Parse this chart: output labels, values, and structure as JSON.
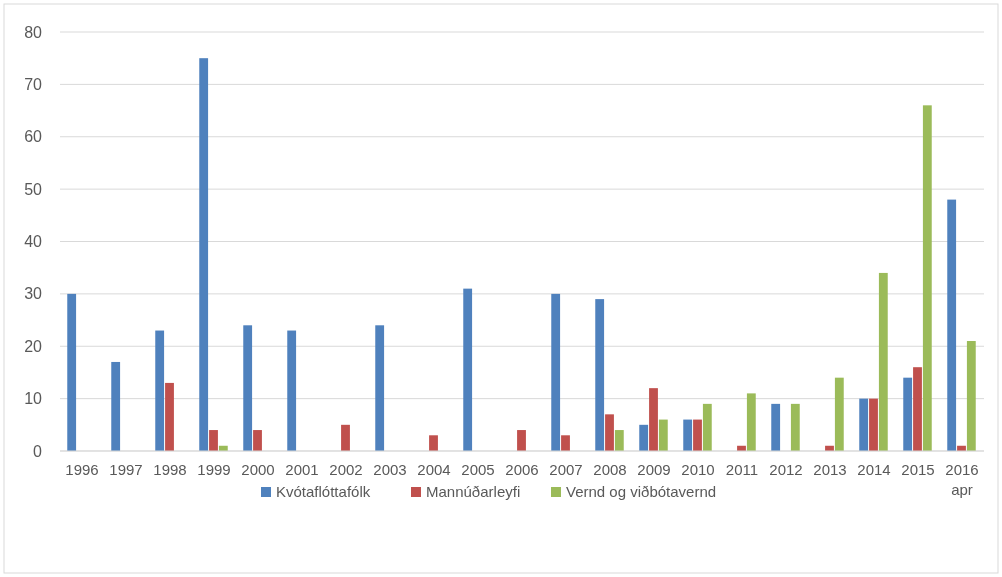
{
  "chart_data": {
    "type": "bar",
    "categories": [
      "1996",
      "1997",
      "1998",
      "1999",
      "2000",
      "2001",
      "2002",
      "2003",
      "2004",
      "2005",
      "2006",
      "2007",
      "2008",
      "2009",
      "2010",
      "2011",
      "2012",
      "2013",
      "2014",
      "2015",
      "2016 apr"
    ],
    "series": [
      {
        "name": "Kvótaflóttafólk",
        "color": "#4f81bd",
        "values": [
          30,
          17,
          23,
          75,
          24,
          23,
          0,
          24,
          0,
          31,
          0,
          30,
          29,
          5,
          6,
          0,
          9,
          0,
          10,
          14,
          48
        ]
      },
      {
        "name": "Mannúðarleyfi",
        "color": "#c0504d",
        "values": [
          0,
          0,
          13,
          4,
          4,
          0,
          5,
          0,
          3,
          0,
          4,
          3,
          7,
          12,
          6,
          1,
          0,
          1,
          10,
          16,
          1
        ]
      },
      {
        "name": "Vernd og viðbótavernd",
        "color": "#9bbb59",
        "values": [
          0,
          0,
          0,
          1,
          0,
          0,
          0,
          0,
          0,
          0,
          0,
          0,
          4,
          6,
          9,
          11,
          9,
          14,
          34,
          66,
          21
        ]
      }
    ],
    "ylim": [
      0,
      80
    ],
    "yticks": [
      0,
      10,
      20,
      30,
      40,
      50,
      60,
      70,
      80
    ],
    "grid": "y",
    "legend": "bottom"
  }
}
